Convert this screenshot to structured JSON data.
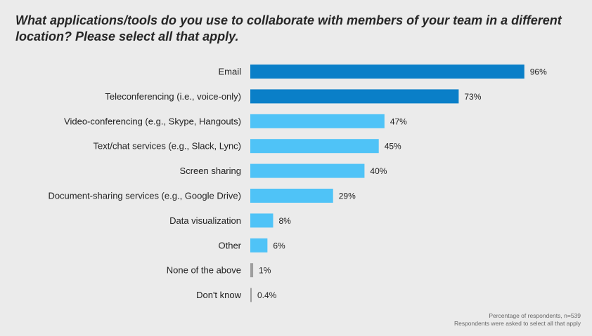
{
  "chart_data": {
    "type": "bar",
    "orientation": "horizontal",
    "title": "What applications/tools do you use to collaborate with members of your team in a different location? Please select all that apply.",
    "categories": [
      "Email",
      "Teleconferencing (i.e., voice-only)",
      "Video-conferencing (e.g., Skype, Hangouts)",
      "Text/chat services (e.g., Slack, Lync)",
      "Screen sharing",
      "Document-sharing services (e.g., Google Drive)",
      "Data visualization",
      "Other",
      "None of the above",
      "Don't know"
    ],
    "values": [
      96,
      73,
      47,
      45,
      40,
      29,
      8,
      6,
      1,
      0.4
    ],
    "value_labels": [
      "96%",
      "73%",
      "47%",
      "45%",
      "40%",
      "29%",
      "8%",
      "6%",
      "1%",
      "0.4%"
    ],
    "bar_colors": [
      "#0a7fc8",
      "#0a7fc8",
      "#4fc3f7",
      "#4fc3f7",
      "#4fc3f7",
      "#4fc3f7",
      "#4fc3f7",
      "#4fc3f7",
      "#9e9e9e",
      "#9e9e9e"
    ],
    "xlim": [
      0,
      100
    ],
    "xlabel": "",
    "ylabel": "",
    "grid": false,
    "legend": "none",
    "footnotes": [
      "Percentage of respondents, n=539",
      "Respondents were asked to select all that apply"
    ]
  }
}
